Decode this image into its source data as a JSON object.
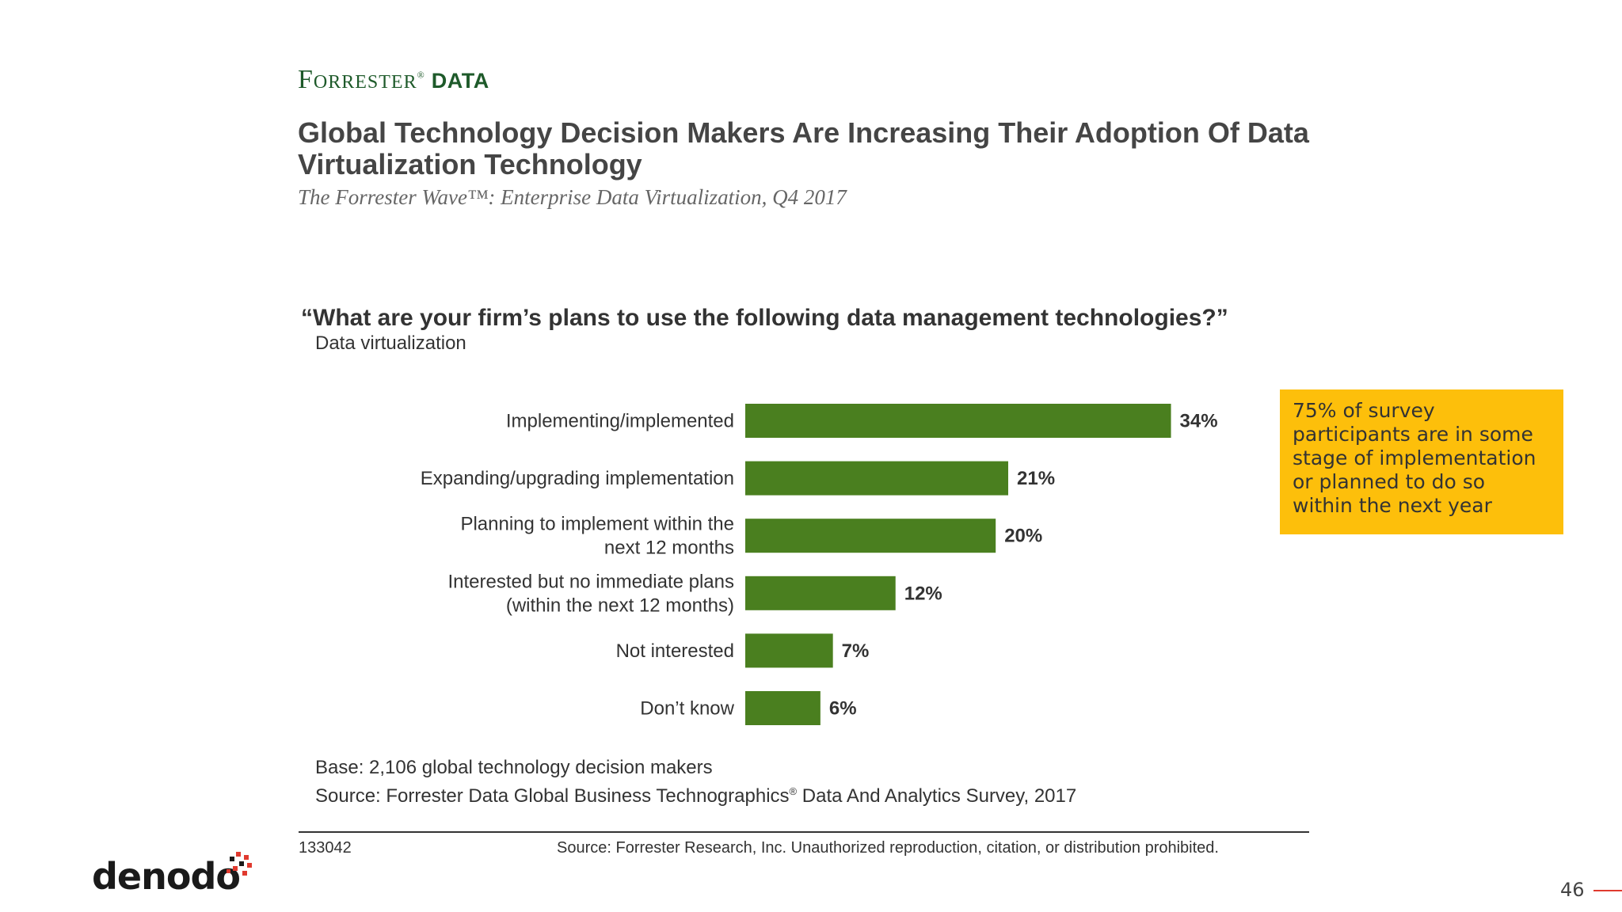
{
  "header": {
    "brand_name": "Forrester",
    "brand_suffix": "Data",
    "title": "Global Technology Decision Makers Are Increasing Their Adoption Of Data Virtualization Technology",
    "subtitle": "The Forrester Wave™: Enterprise Data Virtualization, Q4 2017"
  },
  "chart_data": {
    "type": "bar",
    "orientation": "horizontal",
    "title": "“What are your firm’s plans to use the following data management technologies?”",
    "subtitle": "Data virtualization",
    "categories": [
      "Implementing/implemented",
      "Expanding/upgrading implementation",
      "Planning to implement within the next 12 months",
      "Interested but no immediate plans (within the next 12 months)",
      "Not interested",
      "Don’t know"
    ],
    "category_lines": [
      [
        "Implementing/implemented"
      ],
      [
        "Expanding/upgrading implementation"
      ],
      [
        "Planning to implement within the",
        "next 12 months"
      ],
      [
        "Interested but no immediate plans",
        "(within the next 12 months)"
      ],
      [
        "Not interested"
      ],
      [
        "Don’t know"
      ]
    ],
    "values": [
      34,
      21,
      20,
      12,
      7,
      6
    ],
    "value_labels": [
      "34%",
      "21%",
      "20%",
      "12%",
      "7%",
      "6%"
    ],
    "unit": "%",
    "xlim": [
      0,
      40
    ],
    "bar_color": "#4a7f1f",
    "grid": false,
    "legend": "none"
  },
  "callout": {
    "text": "75% of survey participants are in some stage of implementation or planned to do so within the next year",
    "color": "#fdbf0b"
  },
  "footnotes": {
    "base": "Base: 2,106 global technology decision makers",
    "source_prefix": "Source: Forrester Data Global Business Technographics",
    "source_reg": "®",
    "source_suffix": " Data And Analytics Survey, 2017",
    "doc_id": "133042",
    "copyright": "Source: Forrester Research, Inc. Unauthorized reproduction, citation, or distribution prohibited."
  },
  "footer": {
    "logo_text": "denodo",
    "page_number": "46",
    "accent_color": "#e03a2f"
  }
}
